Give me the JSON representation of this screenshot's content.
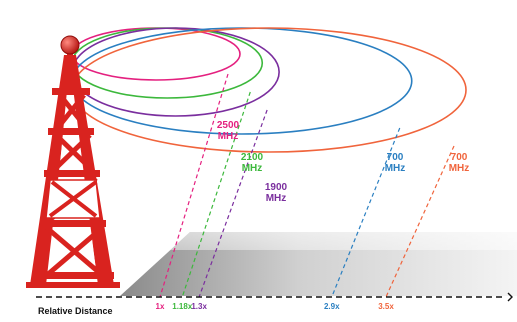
{
  "axis": {
    "label": "Relative Distance"
  },
  "bands": [
    {
      "freq": "2500",
      "unit": "MHz",
      "multiplier": "1x",
      "color": "#e4207f",
      "distance": 1.0
    },
    {
      "freq": "2100",
      "unit": "MHz",
      "multiplier": "1.18x",
      "color": "#3cb83c",
      "distance": 1.18
    },
    {
      "freq": "1900",
      "unit": "MHz",
      "multiplier": "1.3x",
      "color": "#7a2e9e",
      "distance": 1.3
    },
    {
      "freq": "700",
      "unit": "MHz",
      "multiplier": "2.9x",
      "color": "#2a7fc1",
      "distance": 2.9
    },
    {
      "freq": "700",
      "unit": "MHz",
      "multiplier": "3.5x",
      "color": "#f0643c",
      "distance": 3.5
    }
  ],
  "colors": {
    "tower": "#d9231f",
    "tower_light": "#ffffff",
    "axis": "#111111"
  }
}
